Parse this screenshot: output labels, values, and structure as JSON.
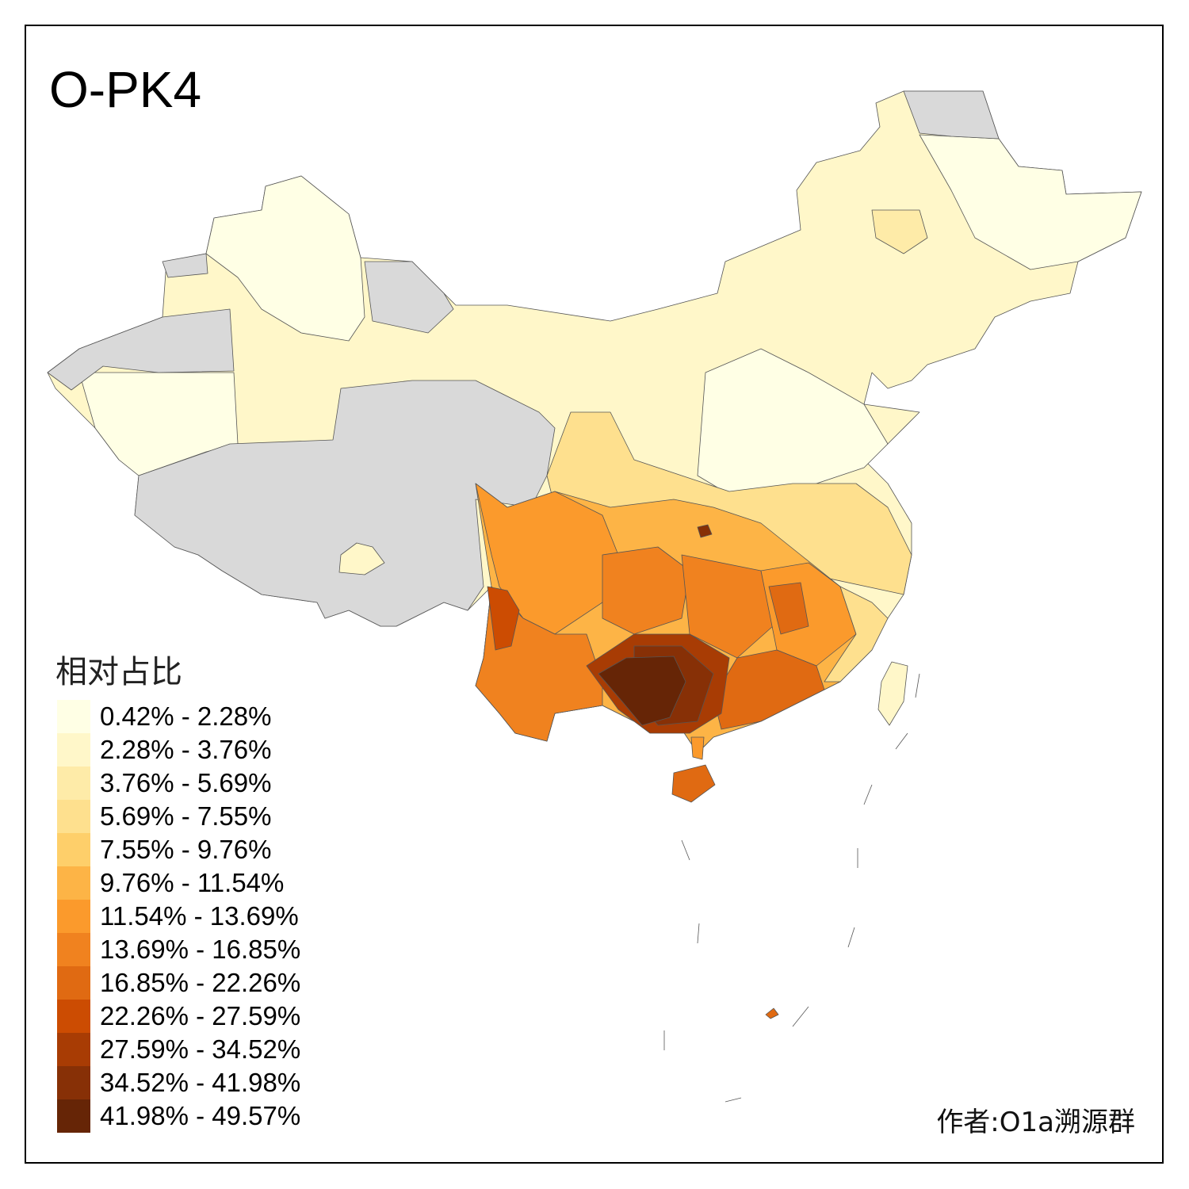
{
  "title": "O-PK4",
  "legend": {
    "title": "相对占比",
    "items": [
      {
        "label": "0.42% - 2.28%",
        "color": "#FFFFE5"
      },
      {
        "label": "2.28% - 3.76%",
        "color": "#FFF7C9"
      },
      {
        "label": "3.76% - 5.69%",
        "color": "#FEEBA8"
      },
      {
        "label": "5.69% - 7.55%",
        "color": "#FEE08E"
      },
      {
        "label": "7.55% - 9.76%",
        "color": "#FECF6A"
      },
      {
        "label": "9.76% - 11.54%",
        "color": "#FDB446"
      },
      {
        "label": "11.54% - 13.69%",
        "color": "#FB9A2C"
      },
      {
        "label": "13.69% - 16.85%",
        "color": "#F0821F"
      },
      {
        "label": "16.85% - 22.26%",
        "color": "#E06A12"
      },
      {
        "label": "22.26% - 27.59%",
        "color": "#CC4C02"
      },
      {
        "label": "27.59% - 34.52%",
        "color": "#A83C04"
      },
      {
        "label": "34.52% - 41.98%",
        "color": "#873006"
      },
      {
        "label": "41.98% - 49.57%",
        "color": "#662506"
      }
    ]
  },
  "no_data_color": "#D9D9D9",
  "author": "作者:O1a溯源群"
}
